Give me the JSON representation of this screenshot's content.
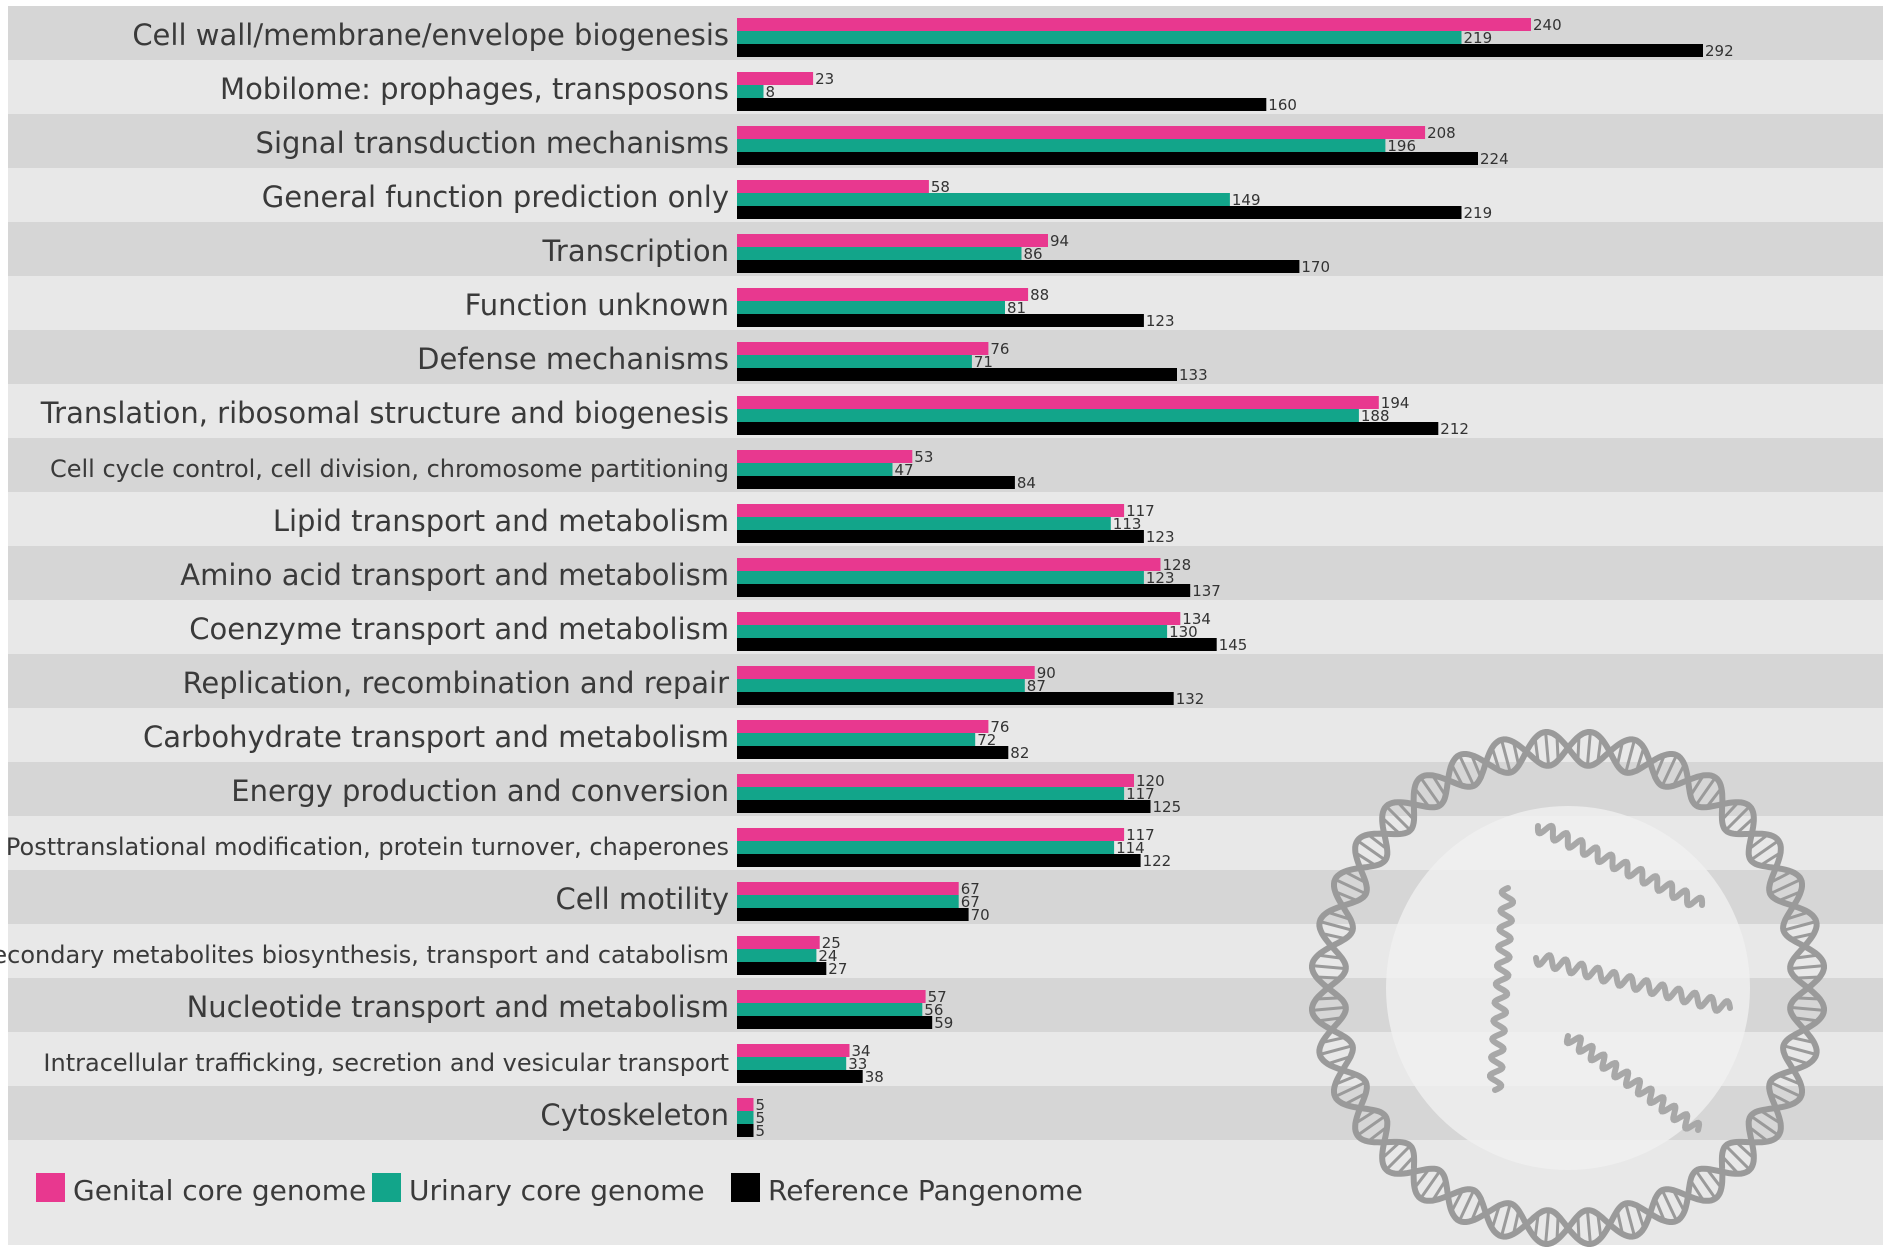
{
  "chart_data": {
    "type": "bar",
    "orientation": "horizontal",
    "title": "",
    "xlabel": "",
    "ylabel": "",
    "xlim": [
      0,
      292
    ],
    "grid": false,
    "legend_position": "bottom-left",
    "categories": [
      "Cell wall/membrane/envelope biogenesis",
      "Mobilome: prophages, transposons",
      "Signal transduction mechanisms",
      "General function prediction only",
      "Transcription",
      "Function unknown",
      "Defense mechanisms",
      "Translation, ribosomal structure and biogenesis",
      "Cell cycle control, cell division, chromosome partitioning",
      "Lipid transport and metabolism",
      "Amino acid transport and metabolism",
      "Coenzyme transport and metabolism",
      "Replication, recombination and repair",
      "Carbohydrate transport and metabolism",
      "Energy production and conversion",
      "Posttranslational modification, protein turnover, chaperones",
      "Cell motility",
      "Secondary metabolites biosynthesis, transport and catabolism",
      "Nucleotide transport and metabolism",
      "Intracellular trafficking, secretion and vesicular transport",
      "Cytoskeleton"
    ],
    "series": [
      {
        "name": "Genital core genome",
        "color": "#e8388f",
        "values": [
          240,
          23,
          208,
          58,
          94,
          88,
          76,
          194,
          53,
          117,
          128,
          134,
          90,
          76,
          120,
          117,
          67,
          25,
          57,
          34,
          5
        ]
      },
      {
        "name": "Urinary core genome",
        "color": "#12a58a",
        "values": [
          219,
          8,
          196,
          149,
          86,
          81,
          71,
          188,
          47,
          113,
          123,
          130,
          87,
          72,
          117,
          114,
          67,
          24,
          56,
          33,
          5
        ]
      },
      {
        "name": "Reference Pangenome",
        "color": "#000000",
        "values": [
          292,
          160,
          224,
          219,
          170,
          123,
          133,
          212,
          84,
          123,
          137,
          145,
          132,
          82,
          125,
          122,
          70,
          27,
          59,
          38,
          5
        ]
      }
    ],
    "decoration": "dna-circle-icon"
  },
  "colors": {
    "band_dark": "#d6d6d6",
    "band_light": "#e8e8e8",
    "label_text": "#3a3a3a"
  }
}
